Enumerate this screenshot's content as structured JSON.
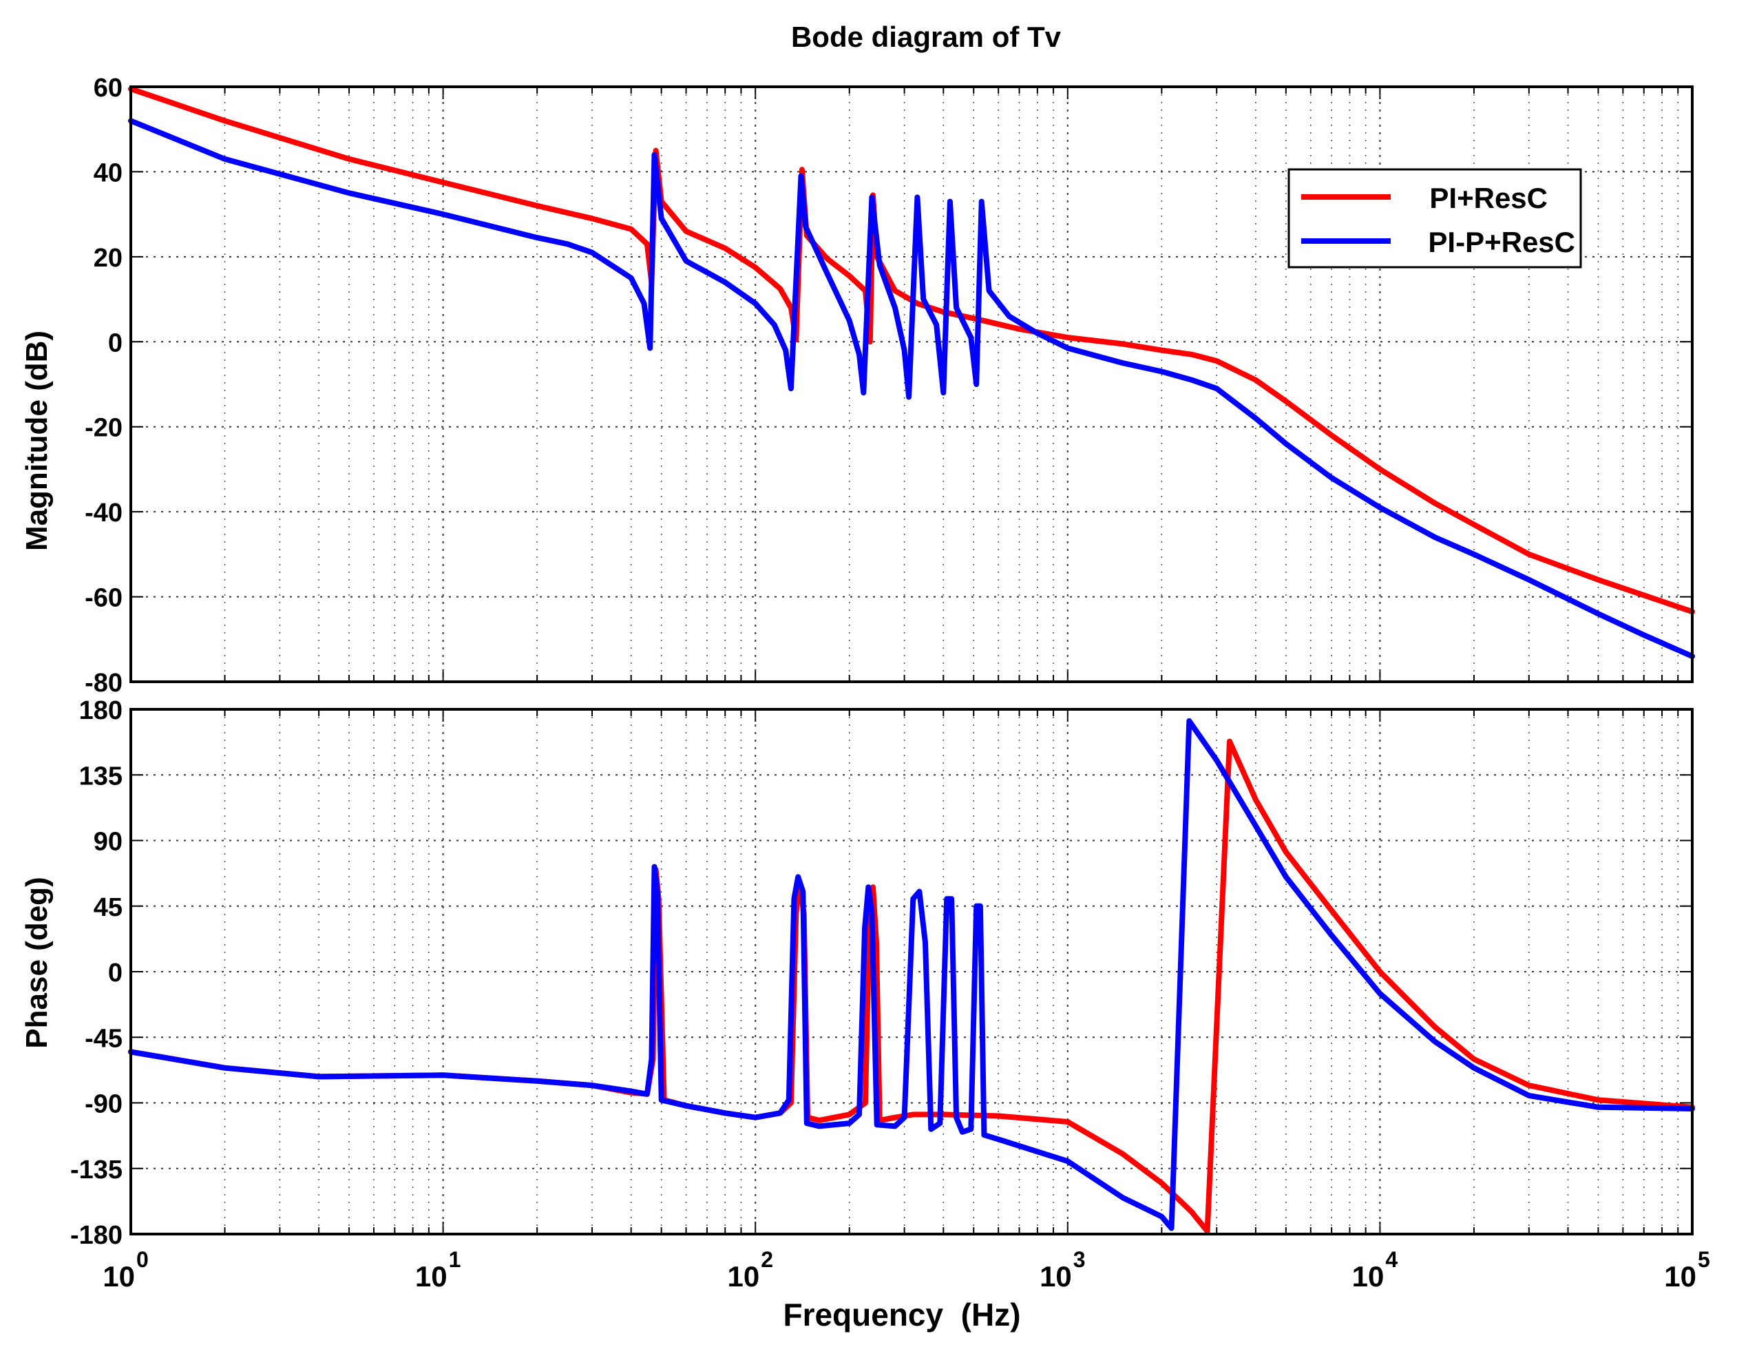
{
  "chart_data": {
    "type": "line",
    "title": "Bode diagram of Tv",
    "xlabel": "Frequency  (Hz)",
    "xscale": "log",
    "xlim": [
      1,
      100000
    ],
    "x_tick_labels": [
      {
        "base": "10",
        "exp": "0"
      },
      {
        "base": "10",
        "exp": "1"
      },
      {
        "base": "10",
        "exp": "2"
      },
      {
        "base": "10",
        "exp": "3"
      },
      {
        "base": "10",
        "exp": "4"
      },
      {
        "base": "10",
        "exp": "5"
      }
    ],
    "legend": {
      "position": "top-right",
      "entries": [
        "PI+ResC",
        "PI-P+ResC"
      ]
    },
    "colors": {
      "PI+ResC": "#ff0000",
      "PI-P+ResC": "#0000ff"
    },
    "magnitude": {
      "ylabel": "Magnitude (dB)",
      "ylim": [
        -80,
        60
      ],
      "ytick_labels": [
        "60",
        "40",
        "20",
        "0",
        "-20",
        "-40",
        "-60",
        "-80"
      ],
      "series": [
        {
          "name": "PI+ResC",
          "points": [
            [
              1,
              59.5
            ],
            [
              2,
              52
            ],
            [
              5,
              43
            ],
            [
              10,
              37.5
            ],
            [
              20,
              32
            ],
            [
              30,
              29
            ],
            [
              40,
              26.5
            ],
            [
              45,
              23
            ],
            [
              46.5,
              14
            ],
            [
              48,
              45
            ],
            [
              50,
              33
            ],
            [
              60,
              26
            ],
            [
              80,
              22
            ],
            [
              100,
              17.5
            ],
            [
              120,
              12.5
            ],
            [
              130,
              8
            ],
            [
              135,
              0.5
            ],
            [
              141,
              40.5
            ],
            [
              146,
              25
            ],
            [
              170,
              19.5
            ],
            [
              200,
              15.5
            ],
            [
              225,
              12
            ],
            [
              233,
              0
            ],
            [
              238,
              34.5
            ],
            [
              245,
              20
            ],
            [
              280,
              12
            ],
            [
              330,
              9
            ],
            [
              400,
              7
            ],
            [
              500,
              5.5
            ],
            [
              700,
              3
            ],
            [
              1000,
              1
            ],
            [
              1500,
              -0.5
            ],
            [
              2000,
              -2
            ],
            [
              2500,
              -3
            ],
            [
              3000,
              -4.5
            ],
            [
              4000,
              -9
            ],
            [
              5000,
              -14
            ],
            [
              7000,
              -22
            ],
            [
              10000,
              -30
            ],
            [
              15000,
              -38
            ],
            [
              20000,
              -43
            ],
            [
              30000,
              -50
            ],
            [
              50000,
              -56
            ],
            [
              100000,
              -63.5
            ]
          ]
        },
        {
          "name": "PI-P+ResC",
          "points": [
            [
              1,
              52
            ],
            [
              2,
              43
            ],
            [
              5,
              35
            ],
            [
              10,
              30
            ],
            [
              20,
              24.5
            ],
            [
              25,
              23
            ],
            [
              30,
              21
            ],
            [
              40,
              15
            ],
            [
              44,
              9
            ],
            [
              46,
              -1.5
            ],
            [
              47.5,
              44
            ],
            [
              50,
              29
            ],
            [
              60,
              19
            ],
            [
              80,
              14
            ],
            [
              100,
              9
            ],
            [
              115,
              4
            ],
            [
              125,
              -2
            ],
            [
              130,
              -11
            ],
            [
              140,
              39
            ],
            [
              145,
              27
            ],
            [
              170,
              16
            ],
            [
              200,
              5
            ],
            [
              215,
              -3
            ],
            [
              222,
              -12
            ],
            [
              236,
              34
            ],
            [
              250,
              18
            ],
            [
              280,
              8
            ],
            [
              300,
              -2
            ],
            [
              310,
              -13
            ],
            [
              330,
              34
            ],
            [
              345,
              10
            ],
            [
              380,
              4
            ],
            [
              400,
              -12
            ],
            [
              420,
              33
            ],
            [
              440,
              8
            ],
            [
              490,
              1
            ],
            [
              510,
              -10
            ],
            [
              530,
              33
            ],
            [
              560,
              12
            ],
            [
              650,
              6
            ],
            [
              800,
              2
            ],
            [
              1000,
              -1.5
            ],
            [
              1500,
              -5
            ],
            [
              2000,
              -7
            ],
            [
              2500,
              -9
            ],
            [
              3000,
              -11
            ],
            [
              4000,
              -18
            ],
            [
              5000,
              -24
            ],
            [
              7000,
              -32
            ],
            [
              10000,
              -39
            ],
            [
              15000,
              -46
            ],
            [
              20000,
              -50
            ],
            [
              30000,
              -56
            ],
            [
              50000,
              -64
            ],
            [
              70000,
              -69
            ],
            [
              100000,
              -74
            ]
          ]
        }
      ]
    },
    "phase": {
      "ylabel": "Phase (deg)",
      "ylim": [
        -180,
        180
      ],
      "ytick_labels": [
        "180",
        "135",
        "90",
        "45",
        "0",
        "-45",
        "-90",
        "-135",
        "-180"
      ],
      "series": [
        {
          "name": "PI+ResC",
          "points": [
            [
              1,
              -55
            ],
            [
              2,
              -66
            ],
            [
              4,
              -72
            ],
            [
              10,
              -71
            ],
            [
              20,
              -75
            ],
            [
              30,
              -78
            ],
            [
              40,
              -83
            ],
            [
              45,
              -84
            ],
            [
              47,
              -60
            ],
            [
              48,
              70
            ],
            [
              49,
              50
            ],
            [
              51,
              -88
            ],
            [
              60,
              -92
            ],
            [
              80,
              -97
            ],
            [
              100,
              -100
            ],
            [
              120,
              -97
            ],
            [
              130,
              -90
            ],
            [
              135,
              40
            ],
            [
              138,
              62
            ],
            [
              143,
              40
            ],
            [
              147,
              -100
            ],
            [
              160,
              -102
            ],
            [
              200,
              -98
            ],
            [
              225,
              -90
            ],
            [
              232,
              40
            ],
            [
              238,
              58
            ],
            [
              244,
              20
            ],
            [
              250,
              -102
            ],
            [
              280,
              -100
            ],
            [
              320,
              -98
            ],
            [
              400,
              -98
            ],
            [
              600,
              -99
            ],
            [
              1000,
              -103
            ],
            [
              1500,
              -125
            ],
            [
              2000,
              -145
            ],
            [
              2500,
              -165
            ],
            [
              2800,
              -178
            ],
            [
              3300,
              158
            ],
            [
              4000,
              118
            ],
            [
              5000,
              82
            ],
            [
              7000,
              42
            ],
            [
              10000,
              0
            ],
            [
              15000,
              -38
            ],
            [
              20000,
              -60
            ],
            [
              30000,
              -78
            ],
            [
              50000,
              -88
            ],
            [
              100000,
              -93
            ]
          ]
        },
        {
          "name": "PI-P+ResC",
          "points": [
            [
              1,
              -55
            ],
            [
              2,
              -66
            ],
            [
              4,
              -72
            ],
            [
              10,
              -71
            ],
            [
              20,
              -75
            ],
            [
              30,
              -78
            ],
            [
              40,
              -82
            ],
            [
              45,
              -84
            ],
            [
              46.5,
              -60
            ],
            [
              47.5,
              72
            ],
            [
              48.5,
              55
            ],
            [
              50,
              -88
            ],
            [
              60,
              -92
            ],
            [
              80,
              -97
            ],
            [
              100,
              -100
            ],
            [
              120,
              -97
            ],
            [
              128,
              -88
            ],
            [
              133,
              50
            ],
            [
              137,
              65
            ],
            [
              142,
              55
            ],
            [
              146,
              -104
            ],
            [
              160,
              -106
            ],
            [
              200,
              -104
            ],
            [
              215,
              -98
            ],
            [
              224,
              30
            ],
            [
              230,
              58
            ],
            [
              236,
              40
            ],
            [
              245,
              -105
            ],
            [
              280,
              -106
            ],
            [
              300,
              -100
            ],
            [
              320,
              50
            ],
            [
              335,
              55
            ],
            [
              350,
              20
            ],
            [
              365,
              -108
            ],
            [
              390,
              -104
            ],
            [
              410,
              50
            ],
            [
              425,
              50
            ],
            [
              440,
              -100
            ],
            [
              460,
              -110
            ],
            [
              490,
              -108
            ],
            [
              510,
              45
            ],
            [
              525,
              45
            ],
            [
              540,
              -112
            ],
            [
              600,
              -115
            ],
            [
              1000,
              -130
            ],
            [
              1500,
              -155
            ],
            [
              2000,
              -168
            ],
            [
              2150,
              -176
            ],
            [
              2450,
              172
            ],
            [
              3000,
              145
            ],
            [
              4000,
              100
            ],
            [
              5000,
              65
            ],
            [
              7000,
              25
            ],
            [
              10000,
              -15
            ],
            [
              15000,
              -48
            ],
            [
              20000,
              -66
            ],
            [
              30000,
              -85
            ],
            [
              50000,
              -93
            ],
            [
              100000,
              -94
            ]
          ]
        }
      ]
    }
  }
}
